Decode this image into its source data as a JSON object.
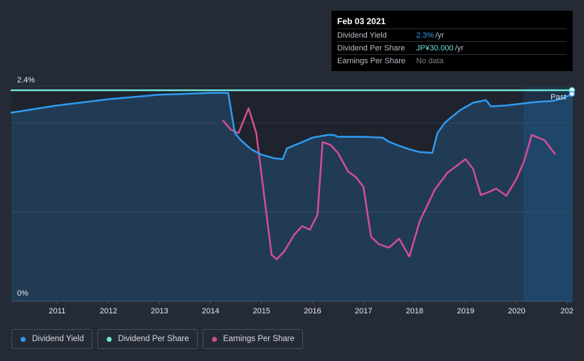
{
  "chart_data": {
    "type": "line",
    "x_range": [
      2010.1,
      2021.1
    ],
    "ylim": [
      0,
      2.4
    ],
    "y_tick_labels": [
      "2.4%",
      "0%"
    ],
    "x_tick_labels": [
      "2011",
      "2012",
      "2013",
      "2014",
      "2015",
      "2016",
      "2017",
      "2018",
      "2019",
      "2020",
      "202"
    ],
    "past_label": "Past",
    "series": [
      {
        "name": "Dividend Yield",
        "color": "#2f9bf0",
        "area": true,
        "x": [
          2010.1,
          2011.0,
          2012.0,
          2013.0,
          2014.0,
          2014.35,
          2014.48,
          2014.6,
          2014.8,
          2015.0,
          2015.25,
          2015.42,
          2015.5,
          2015.8,
          2016.0,
          2016.3,
          2016.42,
          2016.5,
          2016.8,
          2017.0,
          2017.38,
          2017.48,
          2017.7,
          2017.9,
          2018.1,
          2018.35,
          2018.45,
          2018.6,
          2018.9,
          2019.15,
          2019.4,
          2019.5,
          2019.8,
          2020.1,
          2020.4,
          2020.7,
          2020.9,
          2021.1
        ],
        "y": [
          2.11,
          2.19,
          2.26,
          2.31,
          2.33,
          2.33,
          1.88,
          1.8,
          1.7,
          1.64,
          1.6,
          1.59,
          1.71,
          1.78,
          1.83,
          1.86,
          1.86,
          1.84,
          1.84,
          1.84,
          1.83,
          1.79,
          1.74,
          1.7,
          1.67,
          1.66,
          1.88,
          2.0,
          2.14,
          2.22,
          2.25,
          2.18,
          2.19,
          2.21,
          2.23,
          2.24,
          2.27,
          2.32
        ]
      },
      {
        "name": "Dividend Per Share",
        "color": "#6fe3d8",
        "x": [
          2010.1,
          2021.1
        ],
        "y": [
          2.36,
          2.36
        ]
      },
      {
        "name": "Earnings Per Share",
        "color": "#d24e94",
        "x": [
          2014.25,
          2014.4,
          2014.55,
          2014.75,
          2014.9,
          2015.05,
          2015.2,
          2015.3,
          2015.45,
          2015.65,
          2015.8,
          2015.95,
          2016.1,
          2016.2,
          2016.35,
          2016.5,
          2016.7,
          2016.85,
          2017.0,
          2017.15,
          2017.3,
          2017.5,
          2017.7,
          2017.9,
          2018.1,
          2018.4,
          2018.65,
          2019.0,
          2019.15,
          2019.3,
          2019.45,
          2019.6,
          2019.8,
          2020.0,
          2020.15,
          2020.3,
          2020.55,
          2020.75
        ],
        "y": [
          2.02,
          1.92,
          1.88,
          2.16,
          1.88,
          1.2,
          0.52,
          0.47,
          0.56,
          0.75,
          0.84,
          0.8,
          0.97,
          1.78,
          1.75,
          1.66,
          1.45,
          1.39,
          1.28,
          0.72,
          0.64,
          0.6,
          0.7,
          0.5,
          0.89,
          1.25,
          1.44,
          1.59,
          1.48,
          1.19,
          1.22,
          1.26,
          1.18,
          1.37,
          1.57,
          1.86,
          1.8,
          1.65
        ]
      }
    ]
  },
  "tooltip": {
    "date": "Feb 03 2021",
    "rows": [
      {
        "label": "Dividend Yield",
        "value": "2.3%",
        "unit": "/yr"
      },
      {
        "label": "Dividend Per Share",
        "value": "JP¥30.000",
        "unit": "/yr"
      },
      {
        "label": "Earnings Per Share",
        "value": "No data",
        "unit": ""
      }
    ]
  },
  "legend": [
    {
      "label": "Dividend Yield",
      "color": "#2f9bf0"
    },
    {
      "label": "Dividend Per Share",
      "color": "#6fe3d8"
    },
    {
      "label": "Earnings Per Share",
      "color": "#d24e94"
    }
  ]
}
